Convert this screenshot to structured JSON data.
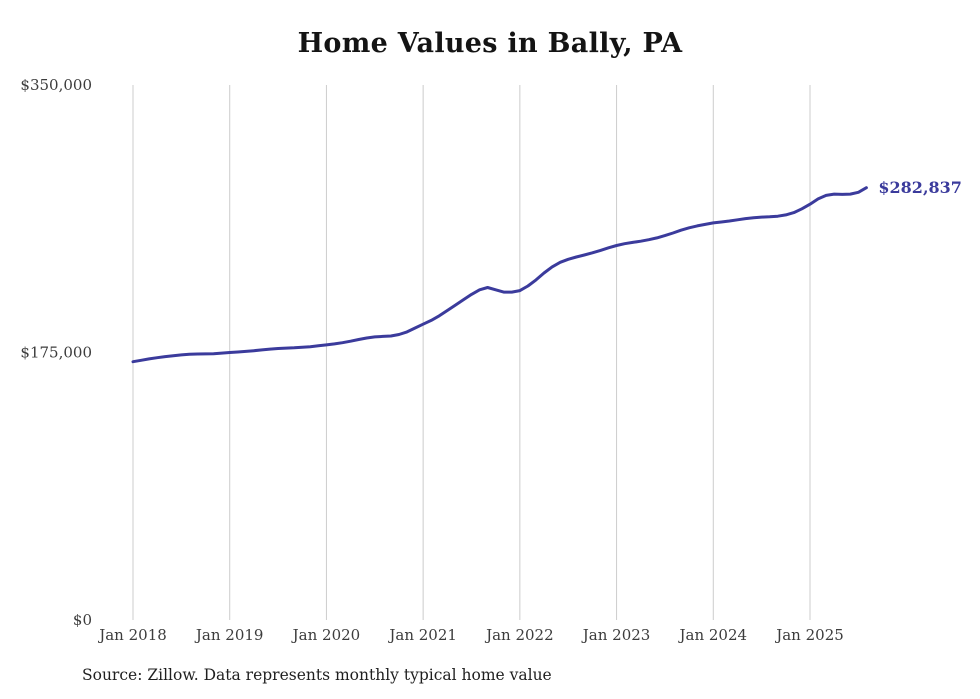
{
  "title": "Home Values in Bally, PA",
  "source_note": "Source: Zillow. Data represents monthly typical home value",
  "end_label": "$282,837",
  "colors": {
    "line": "#3b3b9c",
    "grid": "#cccccc",
    "tick_text": "#3c3c3c",
    "title_text": "#141414"
  },
  "chart_data": {
    "type": "line",
    "title": "Home Values in Bally, PA",
    "series_name": "Typical home value",
    "start_month": "2018-01",
    "frequency": "monthly",
    "values": [
      169000,
      169900,
      170800,
      171600,
      172300,
      172900,
      173400,
      173800,
      174000,
      174100,
      174200,
      174600,
      175000,
      175300,
      175700,
      176200,
      176700,
      177200,
      177600,
      177900,
      178100,
      178400,
      178800,
      179400,
      180000,
      180600,
      181400,
      182400,
      183500,
      184500,
      185200,
      185500,
      185800,
      186800,
      188500,
      191000,
      193500,
      196000,
      199000,
      202500,
      206000,
      209500,
      213000,
      216000,
      217500,
      216000,
      214500,
      214500,
      215500,
      218500,
      222500,
      227000,
      231000,
      234000,
      236000,
      237500,
      238800,
      240200,
      241800,
      243500,
      245000,
      246200,
      247000,
      247800,
      248800,
      250000,
      251500,
      253200,
      255000,
      256600,
      257800,
      258800,
      259800,
      260400,
      261000,
      261800,
      262600,
      263200,
      263600,
      263800,
      264200,
      265000,
      266500,
      269000,
      272000,
      275500,
      277800,
      278600,
      278400,
      278600,
      279800,
      282837
    ],
    "last_value": 282837,
    "end_annotation": "$282,837",
    "xlabel": "",
    "ylabel": "",
    "ylim": [
      0,
      350000
    ],
    "y_ticks": [
      0,
      175000,
      350000
    ],
    "y_tick_labels": [
      "$0",
      "$175,000",
      "$350,000"
    ],
    "x_tick_labels": [
      "Jan 2018",
      "Jan 2019",
      "Jan 2020",
      "Jan 2021",
      "Jan 2022",
      "Jan 2023",
      "Jan 2024",
      "Jan 2025"
    ],
    "grid": "vertical-only",
    "legend": "none"
  }
}
